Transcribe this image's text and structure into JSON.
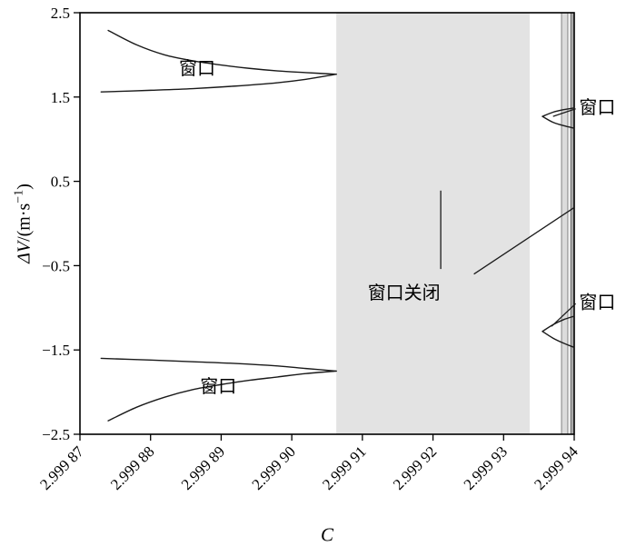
{
  "chart_data": {
    "type": "line",
    "title": "",
    "xlabel": "C",
    "ylabel": "ΔV/(m·s⁻¹)",
    "ylabel_parts": {
      "var": "ΔV",
      "unit_prefix": "/(m·s",
      "sup": "−1",
      "close": ")"
    },
    "xlim": [
      2.99987,
      2.99994
    ],
    "ylim": [
      -2.5,
      2.5
    ],
    "grid": false,
    "legend": "none",
    "line_color": "#1a1a1a",
    "x_ticks": [
      2.99987,
      2.99988,
      2.99989,
      2.9999,
      2.99991,
      2.99992,
      2.99993,
      2.99994
    ],
    "x_tick_labels": [
      "2.999 87",
      "2.999 88",
      "2.999 89",
      "2.999 90",
      "2.999 91",
      "2.999 92",
      "2.999 93",
      "2.999 94"
    ],
    "y_ticks": [
      2.5,
      1.5,
      0.5,
      -0.5,
      -1.5,
      -2.5
    ],
    "y_tick_labels": [
      "2.5",
      "1.5",
      "0.5",
      "−0.5",
      "−1.5",
      "−2.5"
    ],
    "shaded_regions": [
      {
        "name": "window-closed-region",
        "x0": 2.9999063,
        "x1": 2.9999337,
        "color": "#e3e3e3",
        "stroke": "none"
      },
      {
        "name": "narrow-gray-band",
        "x0": 2.9999382,
        "x1": 2.9999391,
        "color": "#dcdcdc",
        "stroke": "#666666"
      },
      {
        "name": "right-edge-dark-band",
        "x0": 2.9999395,
        "x1": 2.99994,
        "color": "#a9a9a9",
        "stroke": "#555555"
      }
    ],
    "series": [
      {
        "name": "upper-left-window-upper-branch",
        "x": [
          2.999874,
          2.999878,
          2.999882,
          2.999886,
          2.99989,
          2.999894,
          2.999898,
          2.999902,
          2.9999063
        ],
        "y": [
          2.29,
          2.12,
          2.0,
          1.93,
          1.88,
          1.84,
          1.81,
          1.79,
          1.77
        ]
      },
      {
        "name": "upper-left-window-lower-branch",
        "x": [
          2.999873,
          2.99988,
          2.999886,
          2.999892,
          2.999898,
          2.999902,
          2.9999063
        ],
        "y": [
          1.56,
          1.58,
          1.6,
          1.63,
          1.67,
          1.71,
          1.77
        ]
      },
      {
        "name": "lower-left-window-upper-branch",
        "x": [
          2.999873,
          2.99988,
          2.999886,
          2.999892,
          2.999898,
          2.999902,
          2.9999063
        ],
        "y": [
          -1.6,
          -1.62,
          -1.64,
          -1.66,
          -1.69,
          -1.72,
          -1.75
        ]
      },
      {
        "name": "lower-left-window-lower-branch",
        "x": [
          2.999874,
          2.999878,
          2.999882,
          2.999886,
          2.99989,
          2.999894,
          2.999898,
          2.999902,
          2.9999063
        ],
        "y": [
          -2.34,
          -2.18,
          -2.06,
          -1.97,
          -1.91,
          -1.86,
          -1.82,
          -1.78,
          -1.75
        ]
      },
      {
        "name": "right-upper-window-upper-branch",
        "x": [
          2.9999355,
          2.999937,
          2.9999385,
          2.99994
        ],
        "y": [
          1.27,
          1.32,
          1.35,
          1.37
        ]
      },
      {
        "name": "right-upper-window-lower-branch",
        "x": [
          2.9999355,
          2.999937,
          2.9999385,
          2.99994
        ],
        "y": [
          1.27,
          1.2,
          1.16,
          1.13
        ]
      },
      {
        "name": "right-lower-window-upper-branch",
        "x": [
          2.9999355,
          2.999937,
          2.9999385,
          2.99994
        ],
        "y": [
          -1.28,
          -1.2,
          -1.14,
          -1.1
        ]
      },
      {
        "name": "right-lower-window-lower-branch",
        "x": [
          2.9999355,
          2.999937,
          2.9999385,
          2.99994
        ],
        "y": [
          -1.28,
          -1.36,
          -1.42,
          -1.47
        ]
      }
    ],
    "annotation_lines": [
      {
        "name": "window-closed-vertical-leader",
        "x1": 2.9999211,
        "y1": 0.39,
        "x2": 2.9999211,
        "y2": -0.54
      },
      {
        "name": "window-closed-diagonal-leader",
        "x1": 2.9999258,
        "y1": -0.6,
        "x2": 2.99994,
        "y2": 0.19
      },
      {
        "name": "upper-right-window-leader",
        "x1": 2.9999402,
        "y1": 1.36,
        "x2": 2.999937,
        "y2": 1.27
      },
      {
        "name": "lower-right-window-leader",
        "x1": 2.9999402,
        "y1": -0.95,
        "x2": 2.9999368,
        "y2": -1.22
      }
    ],
    "annotations": [
      {
        "name": "window-label-upper-left",
        "text": "窗口",
        "x": 2.9998866,
        "y": 1.84,
        "anchor": "middle"
      },
      {
        "name": "window-label-lower-left",
        "text": "窗口",
        "x": 2.9998896,
        "y": -1.93,
        "anchor": "middle"
      },
      {
        "name": "window-label-upper-right",
        "text": "窗口",
        "x": 2.9999407,
        "y": 1.38,
        "anchor": "start"
      },
      {
        "name": "window-label-lower-right",
        "text": "窗口",
        "x": 2.9999407,
        "y": -0.93,
        "anchor": "start"
      },
      {
        "name": "window-closed-label",
        "text": "窗口关闭",
        "x": 2.9999159,
        "y": -0.82,
        "anchor": "middle"
      }
    ]
  }
}
